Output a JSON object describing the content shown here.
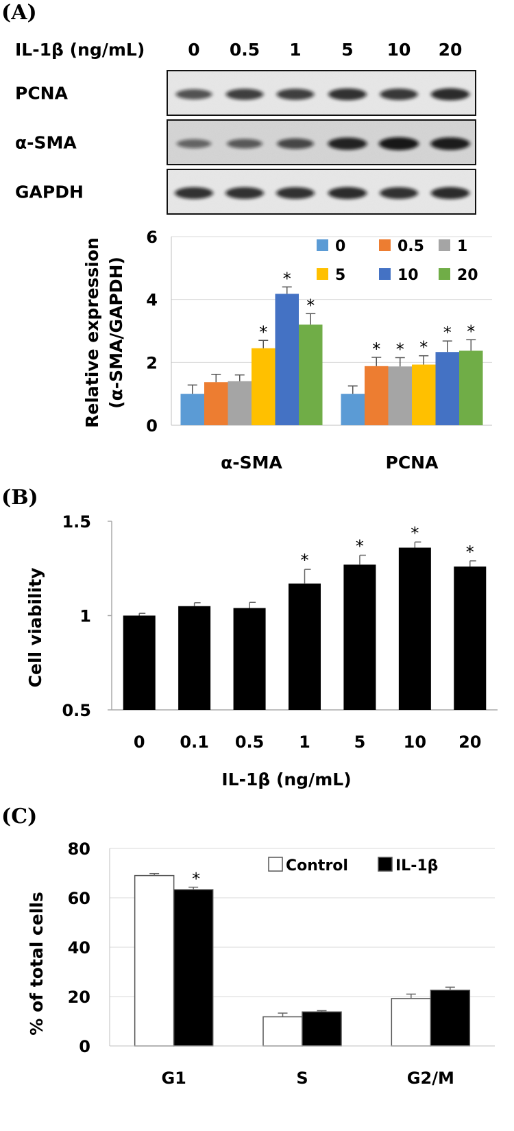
{
  "panels": {
    "a_label": "(A)",
    "b_label": "(B)",
    "c_label": "(C)"
  },
  "blot": {
    "header_label": "IL-1β (ng/mL)",
    "doses": [
      "0",
      "0.5",
      "1",
      "5",
      "10",
      "20"
    ],
    "rows": [
      {
        "name": "PCNA",
        "intensities": [
          0.55,
          0.7,
          0.7,
          0.8,
          0.75,
          0.85
        ]
      },
      {
        "name": "α-SMA",
        "intensities": [
          0.35,
          0.45,
          0.6,
          0.9,
          1.0,
          0.95
        ]
      },
      {
        "name": "GAPDH",
        "intensities": [
          0.8,
          0.8,
          0.8,
          0.85,
          0.8,
          0.85
        ]
      }
    ]
  },
  "chart_data": [
    {
      "type": "bar",
      "id": "A",
      "title": "",
      "ylabel": "Relative expression (α-SMA/GAPDH)",
      "ylabel_lines": [
        "Relative expression",
        "(α-SMA/GAPDH)"
      ],
      "xlabel": "",
      "ylim": [
        0,
        6
      ],
      "yticks": [
        "0",
        "2",
        "4",
        "6"
      ],
      "grid": true,
      "legend_position": "top-right",
      "categories": [
        "α-SMA",
        "PCNA"
      ],
      "series": [
        {
          "name": "0",
          "color": "#5b9bd5",
          "values": [
            1.0,
            1.0
          ],
          "errors": [
            0.28,
            0.25
          ],
          "sig": [
            false,
            false
          ]
        },
        {
          "name": "0.5",
          "color": "#ed7d31",
          "values": [
            1.37,
            1.88
          ],
          "errors": [
            0.25,
            0.28
          ],
          "sig": [
            false,
            true
          ]
        },
        {
          "name": "1",
          "color": "#a5a5a5",
          "values": [
            1.4,
            1.87
          ],
          "errors": [
            0.2,
            0.28
          ],
          "sig": [
            false,
            true
          ]
        },
        {
          "name": "5",
          "color": "#ffc000",
          "values": [
            2.45,
            1.93
          ],
          "errors": [
            0.25,
            0.28
          ],
          "sig": [
            true,
            true
          ]
        },
        {
          "name": "10",
          "color": "#4472c4",
          "values": [
            4.18,
            2.33
          ],
          "errors": [
            0.22,
            0.35
          ],
          "sig": [
            true,
            true
          ]
        },
        {
          "name": "20",
          "color": "#70ad47",
          "values": [
            3.2,
            2.37
          ],
          "errors": [
            0.35,
            0.35
          ],
          "sig": [
            true,
            true
          ]
        }
      ],
      "star": "*"
    },
    {
      "type": "bar",
      "id": "B",
      "title": "",
      "ylabel": "Cell viability",
      "xlabel": "IL-1β (ng/mL)",
      "ylim": [
        0.5,
        1.5
      ],
      "yticks": [
        "0.5",
        "1",
        "1.5"
      ],
      "grid": false,
      "categories": [
        "0",
        "0.1",
        "0.5",
        "1",
        "5",
        "10",
        "20"
      ],
      "series": [
        {
          "name": "Cell viability",
          "color": "#000000",
          "values": [
            1.0,
            1.05,
            1.04,
            1.17,
            1.27,
            1.36,
            1.26
          ],
          "errors": [
            0.012,
            0.018,
            0.03,
            0.075,
            0.05,
            0.03,
            0.03
          ],
          "sig": [
            false,
            false,
            false,
            true,
            true,
            true,
            true
          ]
        }
      ],
      "star": "*"
    },
    {
      "type": "bar",
      "id": "C",
      "title": "",
      "ylabel": "% of total cells",
      "xlabel": "",
      "ylim": [
        0,
        80
      ],
      "yticks": [
        "0",
        "20",
        "40",
        "60",
        "80"
      ],
      "grid": true,
      "legend_position": "top-right",
      "categories": [
        "G1",
        "S",
        "G2/M"
      ],
      "series": [
        {
          "name": "Control",
          "color": "#ffffff",
          "values": [
            69,
            11.8,
            19.2
          ],
          "errors": [
            0.8,
            1.5,
            1.8
          ],
          "sig": [
            false,
            false,
            false
          ]
        },
        {
          "name": "IL-1β",
          "color": "#000000",
          "values": [
            63.3,
            13.8,
            22.6
          ],
          "errors": [
            1.0,
            0.5,
            1.2
          ],
          "sig": [
            true,
            false,
            false
          ]
        }
      ],
      "star": "*"
    }
  ]
}
